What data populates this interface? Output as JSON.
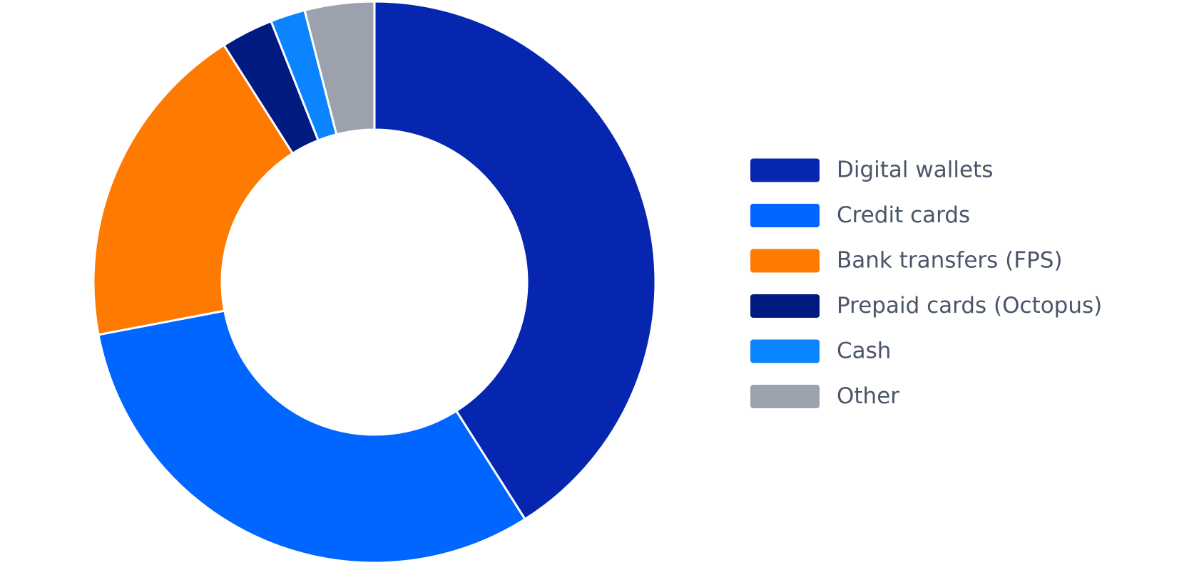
{
  "chart_data": {
    "type": "donut",
    "categories": [
      "Digital wallets",
      "Credit cards",
      "Bank transfers (FPS)",
      "Prepaid cards (Octopus)",
      "Cash",
      "Other"
    ],
    "values": [
      41,
      31,
      19,
      3,
      2,
      4
    ],
    "colors": [
      "#0626b0",
      "#0066ff",
      "#ff7a00",
      "#001a80",
      "#0a84ff",
      "#9ca1ae"
    ],
    "legend": "right"
  }
}
